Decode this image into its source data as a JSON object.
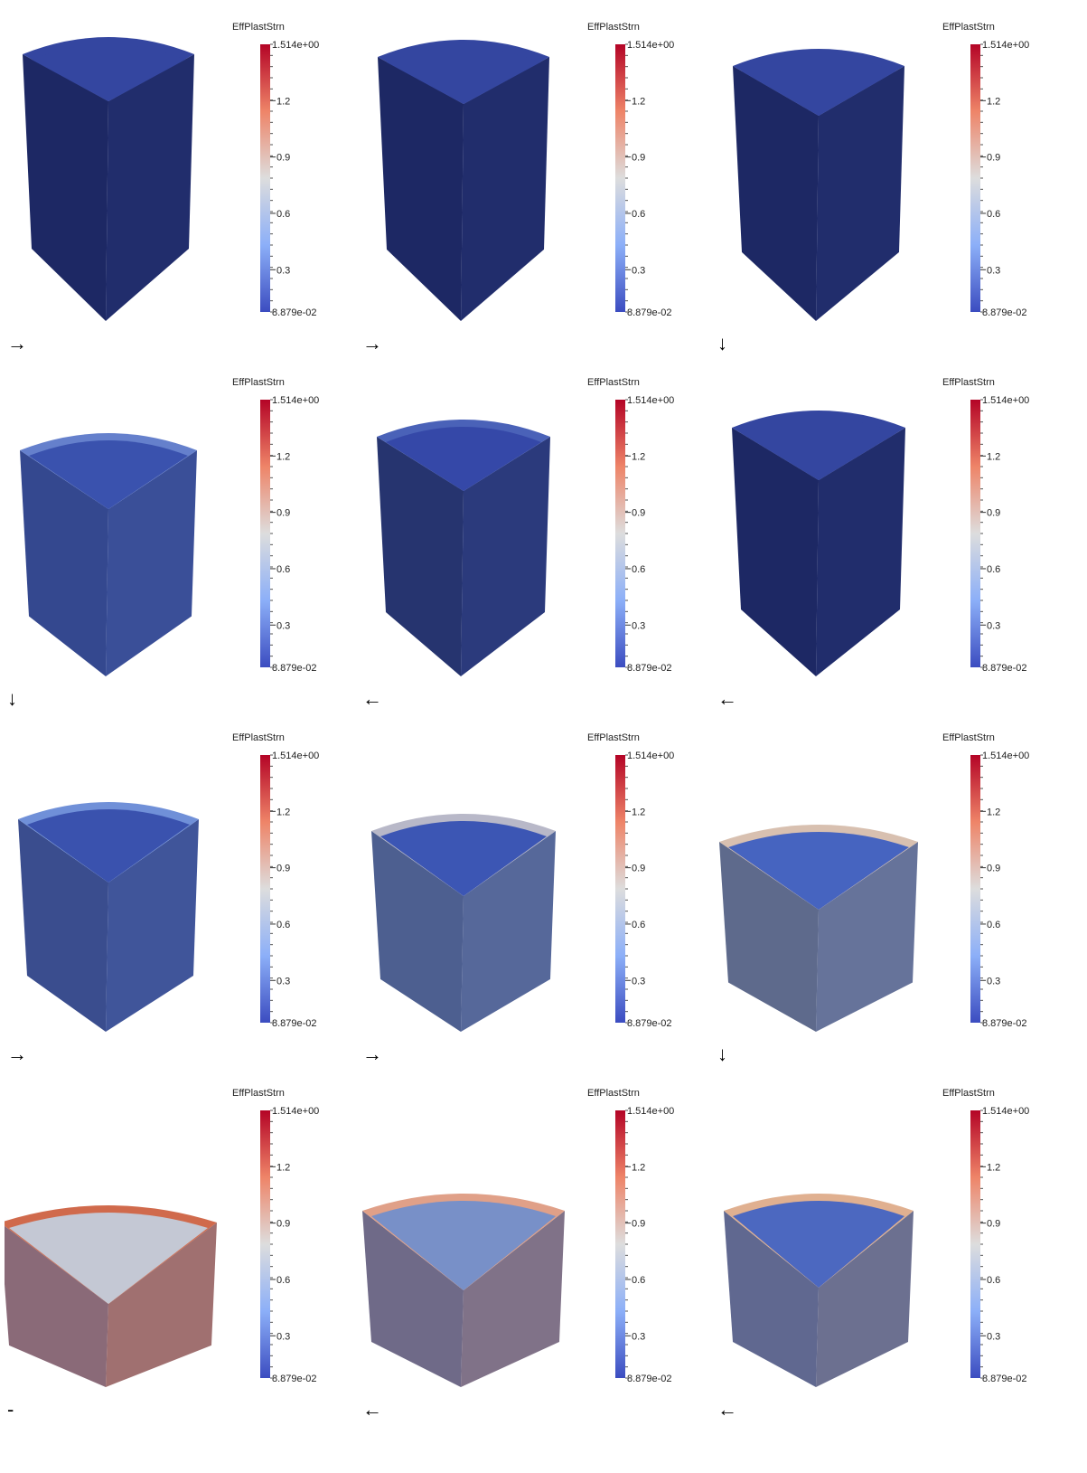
{
  "colorbar": {
    "title": "EffPlastStrn",
    "top_label": "1.514e+00",
    "labels": [
      "1.2",
      "0.9",
      "0.6",
      "0.3"
    ],
    "bottom_label": "8.879e-02"
  },
  "panels": [
    {
      "arrow": "→"
    },
    {
      "arrow": "→"
    },
    {
      "arrow": "↓"
    },
    {
      "arrow": "↓"
    },
    {
      "arrow": "←"
    },
    {
      "arrow": "←"
    },
    {
      "arrow": "→"
    },
    {
      "arrow": "→"
    },
    {
      "arrow": "↓"
    },
    {
      "arrow": "-"
    },
    {
      "arrow": "←"
    },
    {
      "arrow": "←"
    }
  ]
}
